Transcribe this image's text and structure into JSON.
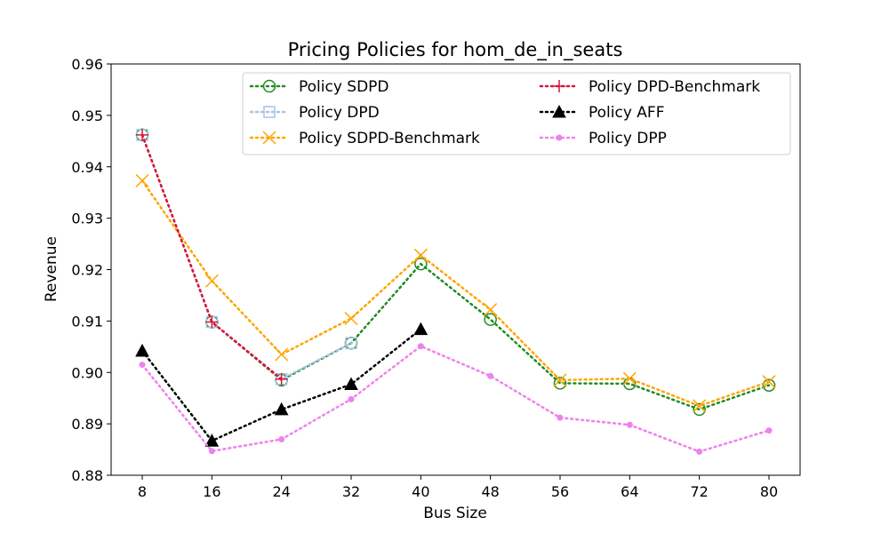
{
  "chart_data": {
    "type": "line",
    "title": "Pricing Policies for hom_de_in_seats",
    "xlabel": "Bus Size",
    "ylabel": "Revenue",
    "categories": [
      "8",
      "16",
      "24",
      "32",
      "40",
      "48",
      "56",
      "64",
      "72",
      "80"
    ],
    "ylim": [
      0.88,
      0.96
    ],
    "yticks": [
      "0.88",
      "0.89",
      "0.90",
      "0.91",
      "0.92",
      "0.93",
      "0.94",
      "0.95",
      "0.96"
    ],
    "grid": false,
    "legend_position": "top",
    "series": [
      {
        "name": "Policy SDPD",
        "color": "#228b22",
        "marker": "open-circle",
        "values": [
          0.9462,
          0.9098,
          0.8985,
          0.9057,
          0.9211,
          0.9103,
          0.8979,
          0.8978,
          0.8928,
          0.8975
        ]
      },
      {
        "name": "Policy DPD",
        "color": "#a6c4e8",
        "marker": "open-square",
        "values": [
          0.9462,
          0.9098,
          0.8987,
          0.9057,
          null,
          null,
          null,
          null,
          null,
          null
        ]
      },
      {
        "name": "Policy SDPD-Benchmark",
        "color": "#ffa500",
        "marker": "x",
        "values": [
          0.9373,
          0.9178,
          0.9035,
          0.9105,
          0.9228,
          0.9122,
          0.8985,
          0.8988,
          0.8935,
          0.8982
        ]
      },
      {
        "name": "Policy DPD-Benchmark",
        "color": "#dc143c",
        "marker": "plus",
        "values": [
          0.9462,
          0.9098,
          0.8987,
          null,
          null,
          null,
          null,
          null,
          null,
          null
        ]
      },
      {
        "name": "Policy AFF",
        "color": "#000000",
        "marker": "filled-triangle",
        "values": [
          0.9042,
          0.8867,
          0.8928,
          0.8977,
          0.9084,
          null,
          null,
          null,
          null,
          null
        ]
      },
      {
        "name": "Policy DPP",
        "color": "#ee82ee",
        "marker": "filled-dot",
        "values": [
          0.9015,
          0.8847,
          0.887,
          0.8948,
          0.9051,
          0.8993,
          0.8912,
          0.8898,
          0.8846,
          0.8887
        ]
      }
    ]
  }
}
